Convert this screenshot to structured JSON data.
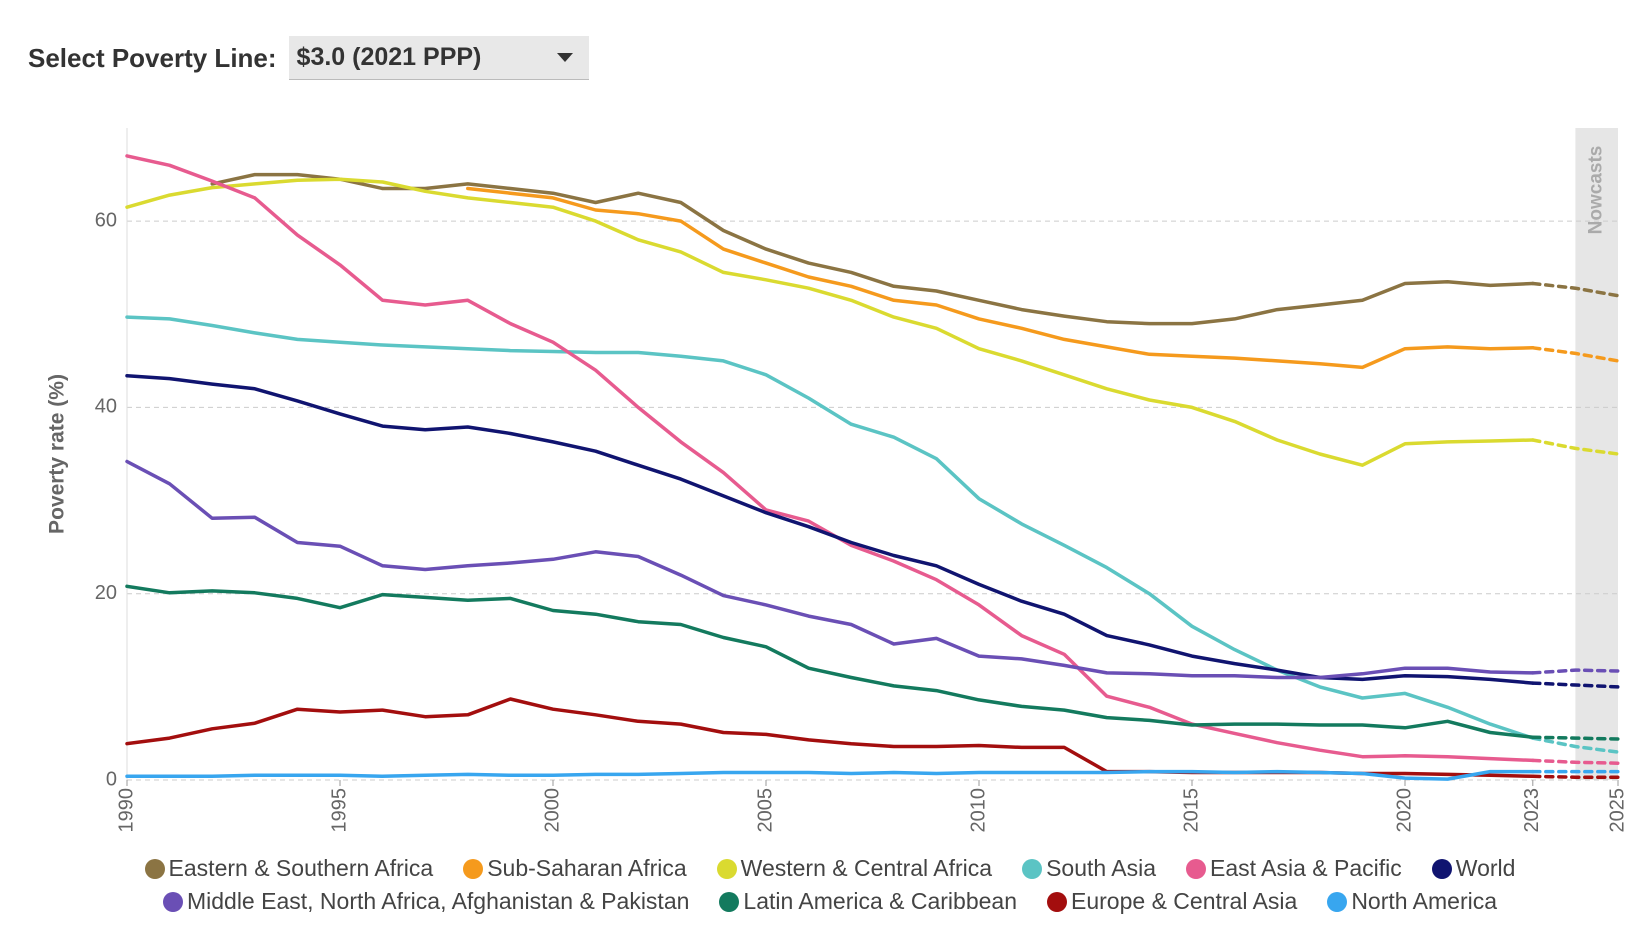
{
  "controls": {
    "label": "Select Poverty Line:",
    "selected": "$3.0 (2021 PPP)"
  },
  "chart_data": {
    "type": "line",
    "y_label": "Poverty rate (%)",
    "xlim": [
      1990,
      2025
    ],
    "ylim": [
      0,
      70
    ],
    "xticks": [
      1990,
      1995,
      2000,
      2005,
      2010,
      2015,
      2020,
      2023,
      2025
    ],
    "yticks": [
      0,
      20,
      40,
      60
    ],
    "grid": true,
    "dashed_from": 2023,
    "nowcast_band": {
      "label": "Nowcasts",
      "range": [
        2024,
        2025
      ]
    },
    "x": [
      1990,
      1991,
      1992,
      1993,
      1994,
      1995,
      1996,
      1997,
      1998,
      1999,
      2000,
      2001,
      2002,
      2003,
      2004,
      2005,
      2006,
      2007,
      2008,
      2009,
      2010,
      2011,
      2012,
      2013,
      2014,
      2015,
      2016,
      2017,
      2018,
      2019,
      2020,
      2021,
      2022,
      2023,
      2024,
      2025
    ],
    "series": [
      {
        "name": "Eastern & Southern Africa",
        "color": "#8b7443",
        "values": [
          null,
          null,
          64,
          65,
          65,
          64.5,
          63.5,
          63.5,
          64,
          63.5,
          63,
          62,
          63,
          62,
          59,
          57,
          55.5,
          54.5,
          53,
          52.5,
          51.5,
          50.5,
          49.8,
          49.2,
          49,
          49,
          49.5,
          50.5,
          51,
          51.5,
          53.3,
          53.5,
          53.1,
          53.3,
          52.8,
          52
        ]
      },
      {
        "name": "Sub-Saharan Africa",
        "color": "#f59a1d",
        "values": [
          null,
          null,
          null,
          null,
          null,
          null,
          null,
          null,
          63.5,
          63,
          62.5,
          61.2,
          60.8,
          60,
          57,
          55.5,
          54,
          53,
          51.5,
          51,
          49.5,
          48.5,
          47.3,
          46.5,
          45.7,
          45.5,
          45.3,
          45,
          44.7,
          44.3,
          46.3,
          46.5,
          46.3,
          46.4,
          45.8,
          45
        ]
      },
      {
        "name": "Western & Central Africa",
        "color": "#dada30",
        "values": [
          61.5,
          62.8,
          63.6,
          64,
          64.4,
          64.5,
          64.2,
          63.2,
          62.5,
          62,
          61.5,
          60,
          58,
          56.7,
          54.5,
          53.7,
          52.8,
          51.5,
          49.7,
          48.5,
          46.3,
          45,
          43.5,
          42,
          40.8,
          40,
          38.5,
          36.5,
          35,
          33.8,
          36.1,
          36.3,
          36.4,
          36.5,
          35.6,
          35
        ]
      },
      {
        "name": "South Asia",
        "color": "#5bc4c4",
        "values": [
          49.7,
          49.5,
          48.8,
          48,
          47.3,
          47,
          46.7,
          46.5,
          46.3,
          46.1,
          46,
          45.9,
          45.9,
          45.5,
          45,
          43.5,
          41,
          38.2,
          36.8,
          34.5,
          30.2,
          27.5,
          25.2,
          22.8,
          20,
          16.5,
          14,
          11.8,
          10,
          8.8,
          9.3,
          7.8,
          6,
          4.5,
          3.6,
          3
        ]
      },
      {
        "name": "East Asia & Pacific",
        "color": "#e75b8f",
        "values": [
          67,
          66,
          64.3,
          62.5,
          58.5,
          55.3,
          51.5,
          51,
          51.5,
          49,
          47,
          44,
          40,
          36.3,
          33,
          29,
          27.8,
          25.2,
          23.5,
          21.5,
          18.8,
          15.5,
          13.5,
          9,
          7.8,
          6,
          5,
          4,
          3.2,
          2.5,
          2.6,
          2.5,
          2.3,
          2.1,
          1.9,
          1.8
        ]
      },
      {
        "name": "World",
        "color": "#101470",
        "values": [
          43.4,
          43.1,
          42.5,
          42,
          40.7,
          39.3,
          38,
          37.6,
          37.9,
          37.2,
          36.3,
          35.3,
          33.8,
          32.3,
          30.5,
          28.7,
          27.2,
          25.5,
          24.1,
          23,
          21,
          19.2,
          17.8,
          15.5,
          14.5,
          13.3,
          12.5,
          11.8,
          11,
          10.8,
          11.2,
          11.1,
          10.8,
          10.4,
          10.2,
          10
        ]
      },
      {
        "name": "Middle East, North Africa, Afghanistan & Pakistan",
        "color": "#6a4fb5",
        "values": [
          34.2,
          31.8,
          28.1,
          28.2,
          25.5,
          25.1,
          23,
          22.6,
          23,
          23.3,
          23.7,
          24.5,
          24,
          22,
          19.8,
          18.8,
          17.6,
          16.7,
          14.6,
          15.2,
          13.3,
          13,
          12.3,
          11.5,
          11.4,
          11.2,
          11.2,
          11,
          11,
          11.4,
          12,
          12,
          11.6,
          11.5,
          11.8,
          11.7
        ]
      },
      {
        "name": "Latin America & Caribbean",
        "color": "#137a5e",
        "values": [
          20.8,
          20.1,
          20.3,
          20.1,
          19.5,
          18.5,
          19.9,
          19.6,
          19.3,
          19.5,
          18.2,
          17.8,
          17,
          16.7,
          15.3,
          14.3,
          12,
          11,
          10.1,
          9.6,
          8.6,
          7.9,
          7.5,
          6.7,
          6.4,
          5.9,
          6,
          6,
          5.9,
          5.9,
          5.6,
          6.3,
          5.1,
          4.6,
          4.5,
          4.4
        ]
      },
      {
        "name": "Europe & Central Asia",
        "color": "#a30e0e",
        "values": [
          3.9,
          4.5,
          5.5,
          6.1,
          7.6,
          7.3,
          7.5,
          6.8,
          7,
          8.7,
          7.6,
          7,
          6.3,
          6,
          5.1,
          4.9,
          4.3,
          3.9,
          3.6,
          3.6,
          3.7,
          3.5,
          3.5,
          0.9,
          0.9,
          0.8,
          0.8,
          0.8,
          0.8,
          0.7,
          0.7,
          0.6,
          0.5,
          0.4,
          0.3,
          0.3
        ]
      },
      {
        "name": "North America",
        "color": "#38a6ef",
        "values": [
          0.4,
          0.4,
          0.4,
          0.5,
          0.5,
          0.5,
          0.4,
          0.5,
          0.6,
          0.5,
          0.5,
          0.6,
          0.6,
          0.7,
          0.8,
          0.8,
          0.8,
          0.7,
          0.8,
          0.7,
          0.8,
          0.8,
          0.8,
          0.8,
          0.9,
          0.9,
          0.8,
          0.9,
          0.8,
          0.7,
          0.2,
          0.1,
          0.9,
          0.9,
          0.9,
          0.9
        ]
      }
    ]
  }
}
